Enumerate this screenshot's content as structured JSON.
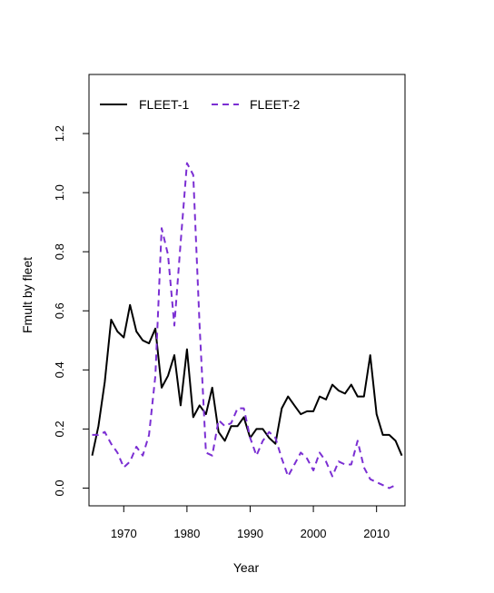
{
  "chart_data": {
    "type": "line",
    "xlabel": "Year",
    "ylabel": "Fmult by fleet",
    "xlim": [
      1964.5,
      2014.5
    ],
    "ylim": [
      -0.06,
      1.4
    ],
    "xticks": [
      1970,
      1980,
      1990,
      2000,
      2010
    ],
    "xtick_labels": [
      "1970",
      "1980",
      "1990",
      "2000",
      "2010"
    ],
    "yticks": [
      0.0,
      0.2,
      0.4,
      0.6,
      0.8,
      1.0,
      1.2
    ],
    "ytick_labels": [
      "0.0",
      "0.2",
      "0.4",
      "0.6",
      "0.8",
      "1.0",
      "1.2"
    ],
    "legend": {
      "position": "top-left",
      "horizontal": true
    },
    "series": [
      {
        "name": "FLEET-1",
        "color": "#000000",
        "dash": "solid",
        "x": [
          1965,
          1966,
          1967,
          1968,
          1969,
          1970,
          1971,
          1972,
          1973,
          1974,
          1975,
          1976,
          1977,
          1978,
          1979,
          1980,
          1981,
          1982,
          1983,
          1984,
          1985,
          1986,
          1987,
          1988,
          1989,
          1990,
          1991,
          1992,
          1993,
          1994,
          1995,
          1996,
          1997,
          1998,
          1999,
          2000,
          2001,
          2002,
          2003,
          2004,
          2005,
          2006,
          2007,
          2008,
          2009,
          2010,
          2011,
          2012,
          2013,
          2014
        ],
        "values": [
          0.11,
          0.21,
          0.36,
          0.57,
          0.53,
          0.51,
          0.62,
          0.53,
          0.5,
          0.49,
          0.54,
          0.34,
          0.38,
          0.45,
          0.28,
          0.47,
          0.24,
          0.28,
          0.25,
          0.34,
          0.19,
          0.16,
          0.21,
          0.21,
          0.24,
          0.17,
          0.2,
          0.2,
          0.17,
          0.15,
          0.27,
          0.31,
          0.28,
          0.25,
          0.26,
          0.26,
          0.31,
          0.3,
          0.35,
          0.33,
          0.32,
          0.35,
          0.31,
          0.31,
          0.45,
          0.25,
          0.18,
          0.18,
          0.16,
          0.11
        ]
      },
      {
        "name": "FLEET-2",
        "color": "#7b2fd3",
        "dash": "dashed",
        "x": [
          1965,
          1966,
          1967,
          1968,
          1969,
          1970,
          1971,
          1972,
          1973,
          1974,
          1975,
          1976,
          1977,
          1978,
          1979,
          1980,
          1981,
          1982,
          1983,
          1984,
          1985,
          1986,
          1987,
          1988,
          1989,
          1990,
          1991,
          1992,
          1993,
          1994,
          1995,
          1996,
          1997,
          1998,
          1999,
          2000,
          2001,
          2002,
          2003,
          2004,
          2005,
          2006,
          2007,
          2008,
          2009,
          2010,
          2011,
          2012,
          2013
        ],
        "values": [
          0.18,
          0.18,
          0.19,
          0.15,
          0.12,
          0.07,
          0.09,
          0.14,
          0.11,
          0.18,
          0.38,
          0.88,
          0.79,
          0.55,
          0.83,
          1.1,
          1.06,
          0.55,
          0.12,
          0.11,
          0.23,
          0.21,
          0.22,
          0.27,
          0.27,
          0.17,
          0.11,
          0.16,
          0.19,
          0.17,
          0.1,
          0.04,
          0.08,
          0.12,
          0.1,
          0.06,
          0.12,
          0.09,
          0.04,
          0.09,
          0.08,
          0.08,
          0.16,
          0.07,
          0.03,
          0.02,
          0.01,
          0.0,
          0.01
        ]
      }
    ]
  }
}
